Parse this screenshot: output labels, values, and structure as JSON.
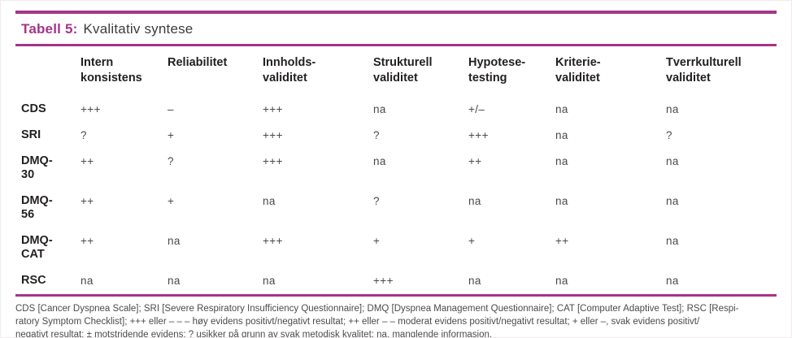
{
  "title": {
    "label": "Tabell 5:",
    "caption": "Kvalitativ syntese"
  },
  "colors": {
    "accent": "#a63488",
    "heading_text": "#231f20",
    "value_text": "#4a4a4c",
    "footnote_text": "#4b4b4d"
  },
  "table": {
    "column_headers": [
      "Intern\nkonsistens",
      "Reliabilitet",
      "Innholds-\nvaliditet",
      "Strukturell\nvaliditet",
      "Hypotese-\ntesting",
      "Kriterie-\nvaliditet",
      "Tverrkulturell\nvaliditet"
    ],
    "rows": [
      {
        "label": "CDS",
        "values": [
          "+++",
          "–",
          "+++",
          "na",
          "+/–",
          "na",
          "na"
        ]
      },
      {
        "label": "SRI",
        "values": [
          "?",
          "+",
          "+++",
          "?",
          "+++",
          "na",
          "?"
        ]
      },
      {
        "label": "DMQ-\n30",
        "values": [
          "++",
          "?",
          "+++",
          "na",
          "++",
          "na",
          "na"
        ]
      },
      {
        "label": "DMQ-\n56",
        "values": [
          "++",
          "+",
          "na",
          "?",
          "na",
          "na",
          "na"
        ]
      },
      {
        "label": "DMQ-\nCAT",
        "values": [
          "++",
          "na",
          "+++",
          "+",
          "+",
          "++",
          "na"
        ]
      },
      {
        "label": "RSC",
        "values": [
          "na",
          "na",
          "na",
          "+++",
          "na",
          "na",
          "na"
        ]
      }
    ]
  },
  "footnote": {
    "lines": [
      "CDS [Cancer Dyspnea Scale]; SRI [Severe Respiratory Insufficiency Questionnaire]; DMQ [Dyspnea Management Questionnaire]; CAT [Computer Adaptive Test]; RSC [Respi-",
      "ratory Symptom Checklist]; +++ eller – – – høy evidens positivt/negativt resultat; ++ eller – – moderat evidens positivt/negativt resultat; + eller –, svak evidens positivt/",
      "negativt resultat; ± motstridende evidens; ? usikker på grunn av svak metodisk kvalitet; na, manglende informasjon."
    ]
  }
}
